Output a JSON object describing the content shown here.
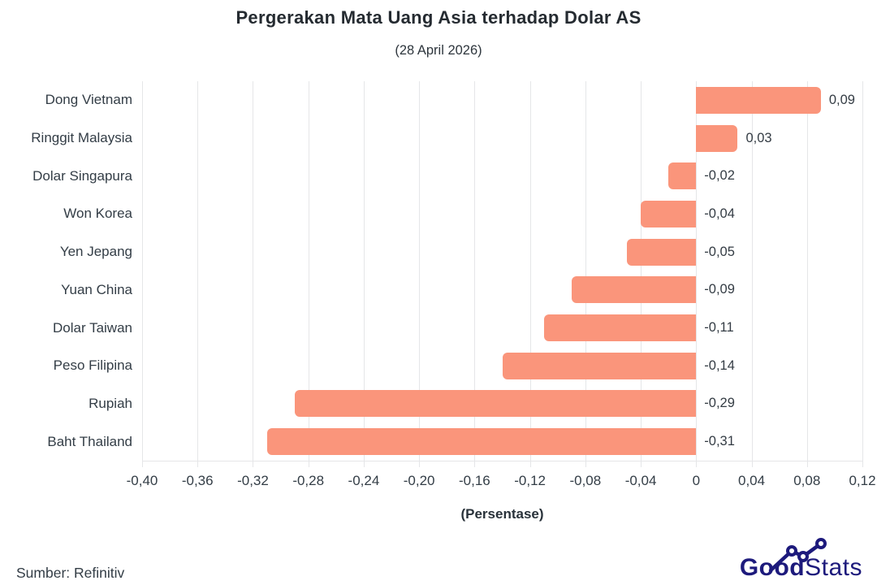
{
  "header": {
    "title": "Pergerakan Mata Uang Asia terhadap Dolar AS",
    "subtitle": "(28 April 2026)"
  },
  "footer": {
    "source": "Sumber: Refinitiv",
    "logo": {
      "bold": "Good",
      "light": "Stats",
      "color": "#1d1a7c"
    }
  },
  "chart_data": {
    "type": "bar",
    "orientation": "horizontal",
    "title": "Pergerakan Mata Uang Asia terhadap Dolar AS",
    "subtitle": "(28 April 2026)",
    "xlabel": "(Persentase)",
    "xlim": [
      -0.4,
      0.12
    ],
    "grid": true,
    "bar_color": "#FA957B",
    "categories": [
      "Dong Vietnam",
      "Ringgit Malaysia",
      "Dolar Singapura",
      "Won Korea",
      "Yen Jepang",
      "Yuan China",
      "Dolar Taiwan",
      "Peso Filipina",
      "Rupiah",
      "Baht Thailand"
    ],
    "values": [
      0.09,
      0.03,
      -0.02,
      -0.04,
      -0.05,
      -0.09,
      -0.11,
      -0.14,
      -0.29,
      -0.31
    ],
    "value_labels": [
      "0,09",
      "0,03",
      "-0,02",
      "-0,04",
      "-0,05",
      "-0,09",
      "-0,11",
      "-0,14",
      "-0,29",
      "-0,31"
    ],
    "xticks": [
      -0.4,
      -0.36,
      -0.32,
      -0.28,
      -0.24,
      -0.2,
      -0.16,
      -0.12,
      -0.08,
      -0.04,
      0,
      0.04,
      0.08,
      0.12
    ],
    "xtick_labels": [
      "-0,40",
      "-0,36",
      "-0,32",
      "-0,28",
      "-0,24",
      "-0,20",
      "-0,16",
      "-0,12",
      "-0,08",
      "-0,04",
      "0",
      "0,04",
      "0,08",
      "0,12"
    ]
  }
}
